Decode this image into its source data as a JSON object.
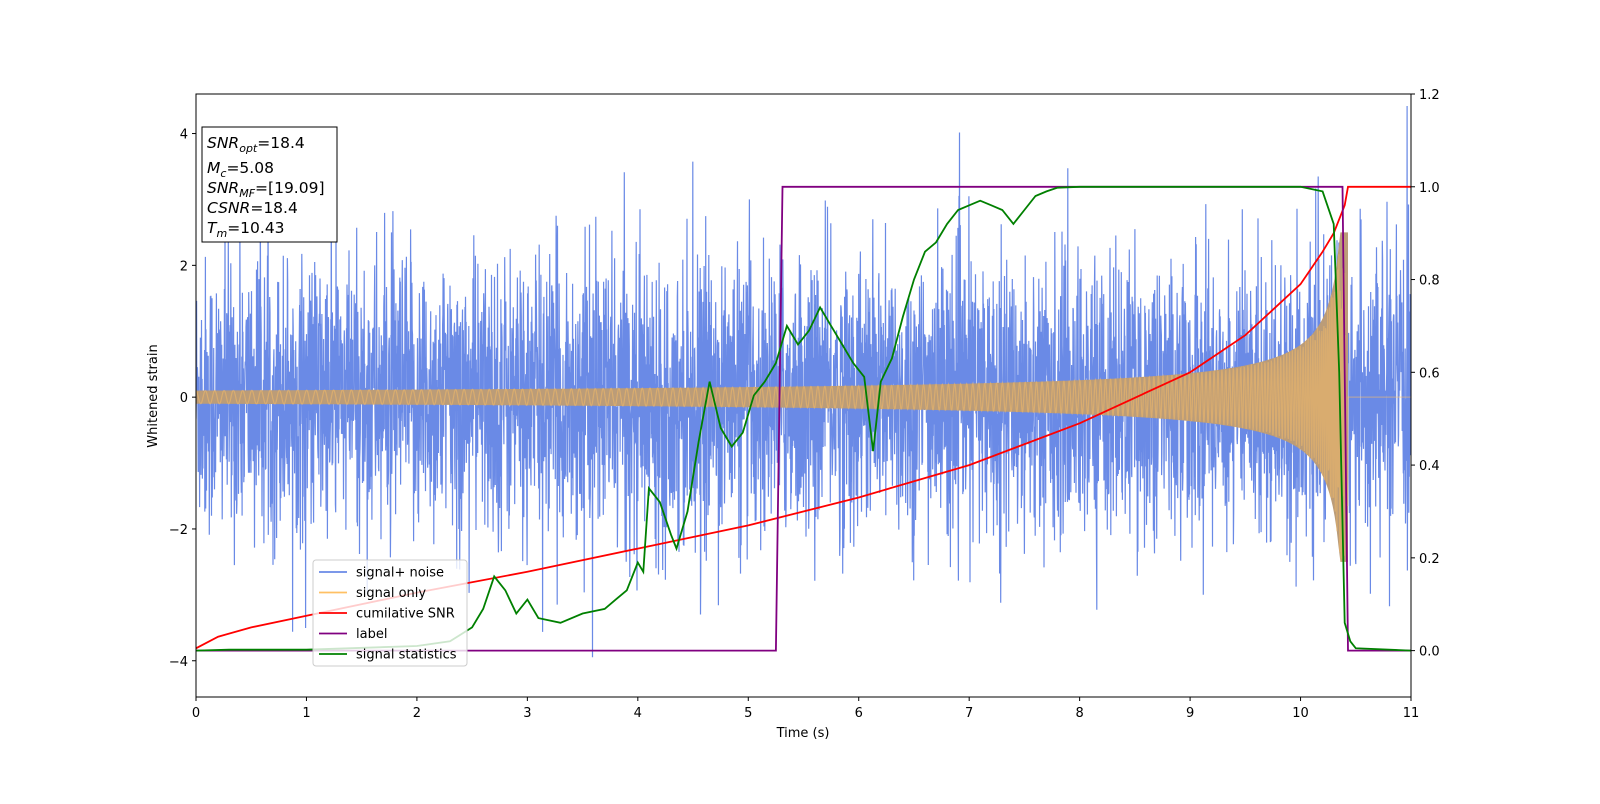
{
  "chart_data": {
    "type": "line",
    "xlabel": "Time (s)",
    "ylabel": "Whitened strain",
    "xlim": [
      0,
      11
    ],
    "ylim_left": [
      -4.55,
      4.6
    ],
    "ylim_right": [
      -0.1,
      1.2
    ],
    "x_ticks": [
      "0",
      "1",
      "2",
      "3",
      "4",
      "5",
      "6",
      "7",
      "8",
      "9",
      "10",
      "11"
    ],
    "y_ticks_left": [
      "4",
      "2",
      "0",
      "−2",
      "−4"
    ],
    "y_ticks_right": [
      "1.2",
      "1.0",
      "0.8",
      "0.6",
      "0.4",
      "0.2",
      "0.0"
    ],
    "grid": false,
    "legend_position": "lower-left",
    "info_box": {
      "snr_opt": {
        "base": "SNR",
        "sub": "opt",
        "value": "=18.4"
      },
      "mc": {
        "base": "M",
        "sub": "c",
        "value": "=5.08"
      },
      "snr_mf": {
        "base": "SNR",
        "sub": "MF",
        "value": "=[19.09]"
      },
      "csnr": {
        "base": "CSNR",
        "sub": "",
        "value": "=18.4"
      },
      "tm": {
        "base": "T",
        "sub": "m",
        "value": "=10.43"
      }
    },
    "series": [
      {
        "name": "signal+ noise",
        "color": "#6a8ae6",
        "axis": "left",
        "kind": "noise",
        "sigma": 1.05,
        "t_end": 11.0
      },
      {
        "name": "signal only",
        "color": "#ffc064",
        "axis": "left",
        "kind": "chirp",
        "amp_start": 0.1,
        "amp_peak": 2.5,
        "t_merge": 10.43,
        "fill_color": "#bb9c78"
      },
      {
        "name": "cumilative SNR",
        "color": "#ff0000",
        "axis": "right",
        "x": [
          0,
          0.2,
          0.5,
          1,
          2,
          3,
          4,
          5,
          6,
          7,
          8,
          9,
          9.5,
          10,
          10.2,
          10.3,
          10.4,
          10.43,
          11
        ],
        "y": [
          0.005,
          0.03,
          0.05,
          0.075,
          0.125,
          0.17,
          0.22,
          0.27,
          0.33,
          0.4,
          0.49,
          0.6,
          0.68,
          0.79,
          0.86,
          0.9,
          0.96,
          1.0,
          1.0
        ]
      },
      {
        "name": "label",
        "color": "#800080",
        "axis": "right",
        "x": [
          0,
          5.25,
          5.31,
          10.38,
          10.43,
          11
        ],
        "y": [
          0,
          0,
          1,
          1,
          0,
          0
        ]
      },
      {
        "name": "signal statistics",
        "color": "#008000",
        "axis": "right",
        "x": [
          0,
          0.3,
          1,
          2,
          2.3,
          2.5,
          2.6,
          2.7,
          2.8,
          2.9,
          3.0,
          3.1,
          3.3,
          3.5,
          3.7,
          3.8,
          3.9,
          4.0,
          4.05,
          4.1,
          4.2,
          4.3,
          4.35,
          4.45,
          4.55,
          4.65,
          4.75,
          4.85,
          4.95,
          5.05,
          5.15,
          5.25,
          5.35,
          5.45,
          5.55,
          5.65,
          5.75,
          5.85,
          5.95,
          6.05,
          6.13,
          6.2,
          6.3,
          6.4,
          6.5,
          6.6,
          6.7,
          6.8,
          6.9,
          7.0,
          7.1,
          7.2,
          7.3,
          7.4,
          7.5,
          7.6,
          7.7,
          7.8,
          8.0,
          9.0,
          10.0,
          10.2,
          10.3,
          10.35,
          10.4,
          10.45,
          10.5,
          11
        ],
        "y": [
          0,
          0.002,
          0.002,
          0.01,
          0.02,
          0.05,
          0.09,
          0.16,
          0.13,
          0.08,
          0.11,
          0.07,
          0.06,
          0.08,
          0.09,
          0.11,
          0.13,
          0.19,
          0.17,
          0.35,
          0.32,
          0.25,
          0.22,
          0.3,
          0.45,
          0.58,
          0.48,
          0.44,
          0.47,
          0.55,
          0.58,
          0.62,
          0.7,
          0.66,
          0.69,
          0.74,
          0.7,
          0.66,
          0.62,
          0.59,
          0.43,
          0.58,
          0.63,
          0.72,
          0.8,
          0.86,
          0.88,
          0.92,
          0.95,
          0.96,
          0.97,
          0.96,
          0.95,
          0.92,
          0.95,
          0.98,
          0.99,
          0.998,
          1.0,
          1.0,
          1.0,
          0.99,
          0.92,
          0.6,
          0.06,
          0.02,
          0.005,
          0.0
        ]
      }
    ]
  }
}
